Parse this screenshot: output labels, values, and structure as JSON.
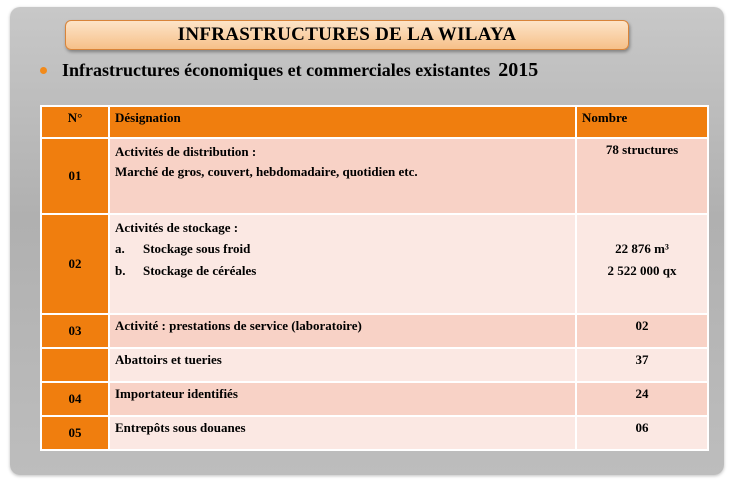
{
  "title": "INFRASTRUCTURES  DE LA WILAYA",
  "subtitle": "Infrastructures  économiques  et commerciales existantes",
  "year": "2015",
  "table": {
    "headers": [
      "N°",
      "Désignation",
      "Nombre"
    ],
    "rows": [
      {
        "num": "01",
        "designation": "Activités de distribution :",
        "detail": "Marché de gros, couvert, hebdomadaire, quotidien etc.",
        "count": "78 structures"
      },
      {
        "num": "02",
        "designation": "Activités de stockage :",
        "items": [
          {
            "marker": "a.",
            "label": "Stockage sous froid",
            "count": "22 876 m³"
          },
          {
            "marker": "b.",
            "label": "Stockage de céréales",
            "count": "2 522 000 qx"
          }
        ]
      },
      {
        "num": "03",
        "designation": "Activité : prestations de service (laboratoire)",
        "count": "02"
      },
      {
        "num": "",
        "designation": "Abattoirs et tueries",
        "count": "37"
      },
      {
        "num": "04",
        "designation": "Importateur identifiés",
        "count": "24"
      },
      {
        "num": "05",
        "designation": "Entrepôts  sous douanes",
        "count": "06"
      }
    ]
  },
  "colors": {
    "accent": "#f07e0e",
    "row_odd": "#f8d2c6",
    "row_even": "#fbe8e3",
    "title_box": "#f6c089"
  }
}
